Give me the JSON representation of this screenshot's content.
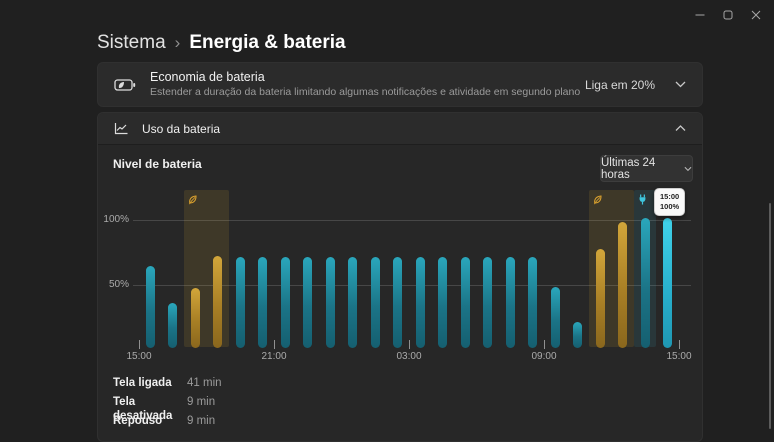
{
  "titlebar": {
    "icons": [
      "minimize-icon",
      "maximize-icon",
      "close-icon"
    ]
  },
  "breadcrumb": {
    "parent": "Sistema",
    "separator": "›",
    "current": "Energia & bateria"
  },
  "battery_saver": {
    "icon": "battery-saver-icon",
    "title": "Economia de bateria",
    "description": "Estender a duração da bateria limitando algumas notificações e atividade em segundo plano",
    "setting_value": "Liga em 20%",
    "chevron": "chevron-down-icon"
  },
  "battery_usage": {
    "icon": "line-chart-icon",
    "title": "Uso da bateria",
    "chevron": "chevron-up-icon",
    "level_label": "Nivel de bateria",
    "time_range_value": "Últimas 24 horas"
  },
  "chart_data": {
    "type": "bar",
    "title": "Nivel de bateria",
    "unit": "%",
    "ylim": [
      0,
      100
    ],
    "y_ticks": [
      "100%",
      "50%"
    ],
    "x_ticks": [
      "15:00",
      "21:00",
      "03:00",
      "09:00",
      "15:00"
    ],
    "grid": true,
    "bar_interval_hours": 1,
    "bar_values": [
      63,
      35,
      46,
      71,
      70,
      70,
      70,
      70,
      70,
      70,
      70,
      70,
      70,
      70,
      70,
      70,
      70,
      70,
      47,
      20,
      76,
      97,
      100,
      100
    ],
    "bar_states": [
      "normal",
      "normal",
      "saver",
      "saver",
      "normal",
      "normal",
      "normal",
      "normal",
      "normal",
      "normal",
      "normal",
      "normal",
      "normal",
      "normal",
      "normal",
      "normal",
      "normal",
      "normal",
      "normal",
      "normal",
      "saver",
      "saver",
      "normal",
      "current"
    ],
    "regions": [
      {
        "kind": "saver",
        "from_bar": 2,
        "to_bar": 3,
        "icon": "leaf-icon"
      },
      {
        "kind": "saver",
        "from_bar": 20,
        "to_bar": 21,
        "icon": "leaf-icon"
      },
      {
        "kind": "charging",
        "from_bar": 22,
        "to_bar": 22,
        "icon": "plug-icon"
      }
    ],
    "tooltip": {
      "time": "15:00",
      "level": "100%"
    },
    "legend": "none"
  },
  "stats": [
    {
      "label": "Tela ligada",
      "value": "41 min"
    },
    {
      "label": "Tela desativada",
      "value": "9 min"
    },
    {
      "label": "Repouso",
      "value": "9 min"
    }
  ],
  "colors": {
    "background": "#202020",
    "card": "#2b2b2b",
    "card_expanded": "#272727",
    "teal_bar": "#1e94a8",
    "teal_bar_bright": "#38c8e0",
    "orange_bar": "#c79d33",
    "saver_region": "rgba(207,160,48,0.14)",
    "charging_region": "rgba(56,197,221,0.10)",
    "tooltip_bg": "#f9f9f9",
    "gridline": "#474747"
  }
}
